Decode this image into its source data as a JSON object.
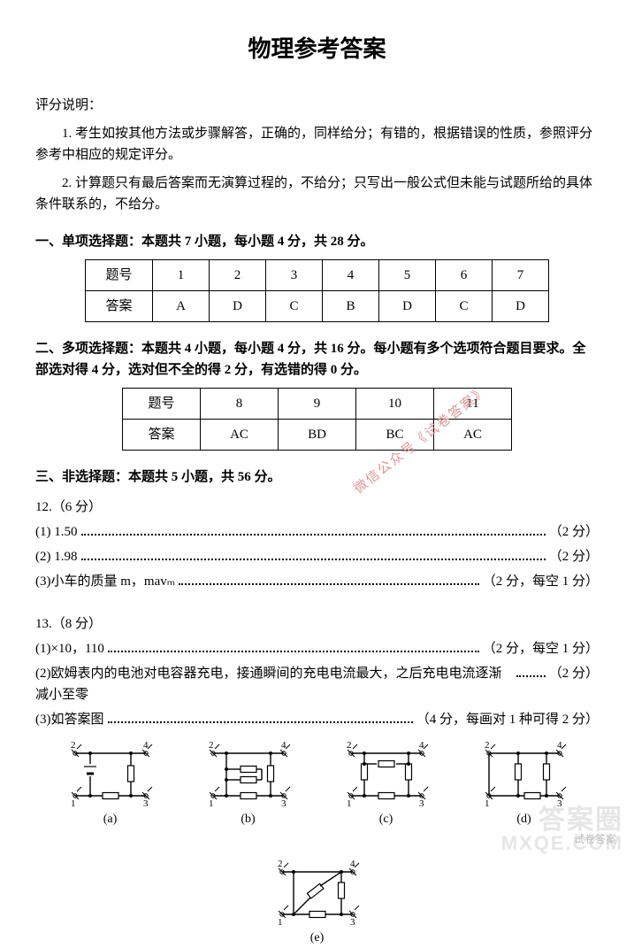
{
  "title": "物理参考答案",
  "intro": {
    "heading": "评分说明：",
    "p1": "1. 考生如按其他方法或步骤解答，正确的，同样给分；有错的，根据错误的性质，参照评分参考中相应的规定评分。",
    "p2": "2. 计算题只有最后答案而无演算过程的，不给分；只写出一般公式但未能与试题所给的具体条件联系的，不给分。"
  },
  "section1": {
    "heading": "一、单项选择题：本题共 7 小题，每小题 4 分，共 28 分。",
    "row_label": "题号",
    "ans_label": "答案",
    "nums": [
      "1",
      "2",
      "3",
      "4",
      "5",
      "6",
      "7"
    ],
    "ans": [
      "A",
      "D",
      "C",
      "B",
      "D",
      "C",
      "D"
    ]
  },
  "section2": {
    "heading": "二、多项选择题：本题共 4 小题，每小题 4 分，共 16 分。每小题有多个选项符合题目要求。全部选对得 4 分，选对但不全的得 2 分，有选错的得 0 分。",
    "row_label": "题号",
    "ans_label": "答案",
    "nums": [
      "8",
      "9",
      "10",
      "11"
    ],
    "ans": [
      "AC",
      "BD",
      "BC",
      "AC"
    ]
  },
  "section3": {
    "heading": "三、非选择题：本题共 5 小题，共 56 分。"
  },
  "q12": {
    "head": "12.（6 分）",
    "r1_pre": "(1) 1.50",
    "r1_post": "（2 分）",
    "r2_pre": "(2) 1.98",
    "r2_post": "（2 分）",
    "r3_pre": "(3)小车的质量 m，mavₘ",
    "r3_post": "（2 分，每空 1 分）"
  },
  "q13": {
    "head": "13.（8 分）",
    "r1_pre": "(1)×10，110",
    "r1_post": "（2 分，每空 1 分）",
    "r2_pre": "(2)欧姆表内的电池对电容器充电，接通瞬间的充电电流最大，之后充电电流逐渐减小至零",
    "r2_post": "（2 分）",
    "r3_pre": "(3)如答案图",
    "r3_post": "（4 分，每画对 1 种可得 2 分）",
    "labels": [
      "(a)",
      "(b)",
      "(c)",
      "(d)",
      "(e)"
    ]
  },
  "watermark": {
    "diag": "微信公众号《试卷答案》",
    "br1": "答案圈",
    "br2": "MXQE.COM",
    "small": "试卷答案"
  },
  "style": {
    "terminal_r": 2.2,
    "stroke": "#000000",
    "stroke_w": 1.4,
    "label_font": 11
  }
}
